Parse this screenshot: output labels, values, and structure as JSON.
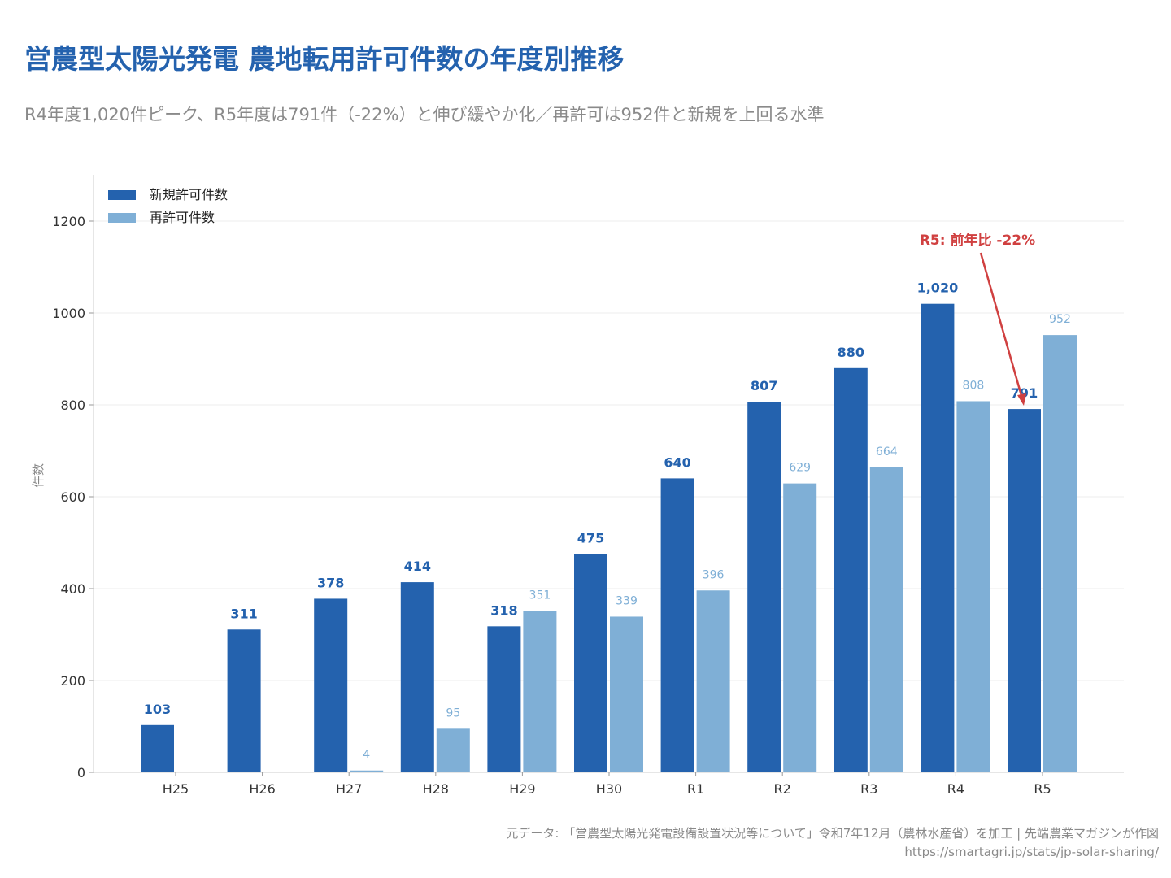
{
  "title": "営農型太陽光発電 農地転用許可件数の年度別推移",
  "subtitle": "R4年度1,020件ピーク、R5年度は791件（-22%）と伸び緩やか化／再許可は952件と新規を上回る水準",
  "footer": {
    "source": "元データ: 「営農型太陽光発電設備設置状況等について」令和7年12月（農林水産省）を加工 | 先端農業マガジンが作図",
    "url": "https://smartagri.jp/stats/jp-solar-sharing/"
  },
  "chart_data": {
    "type": "bar",
    "title": "",
    "xlabel": "",
    "ylabel": "件数",
    "ylim": [
      0,
      1200
    ],
    "yticks": [
      0,
      200,
      400,
      600,
      800,
      1000,
      1200
    ],
    "grid": true,
    "legend_position": "top-left",
    "categories": [
      "H25",
      "H26",
      "H27",
      "H28",
      "H29",
      "H30",
      "R1",
      "R2",
      "R3",
      "R4",
      "R5"
    ],
    "series": [
      {
        "name": "新規許可件数",
        "color": "#2462ae",
        "values": [
          103,
          311,
          378,
          414,
          318,
          475,
          640,
          807,
          880,
          1020,
          791
        ],
        "labels": [
          "103",
          "311",
          "378",
          "414",
          "318",
          "475",
          "640",
          "807",
          "880",
          "1,020",
          "791"
        ]
      },
      {
        "name": "再許可件数",
        "color": "#7fafd6",
        "values": [
          null,
          null,
          4,
          95,
          351,
          339,
          396,
          629,
          664,
          808,
          952
        ],
        "labels": [
          "",
          "",
          "4",
          "95",
          "351",
          "339",
          "396",
          "629",
          "664",
          "808",
          "952"
        ]
      }
    ],
    "annotation": {
      "text": "R5: 前年比 -22%",
      "target_category": "R5",
      "target_series": "新規許可件数",
      "color": "#d04040"
    }
  }
}
